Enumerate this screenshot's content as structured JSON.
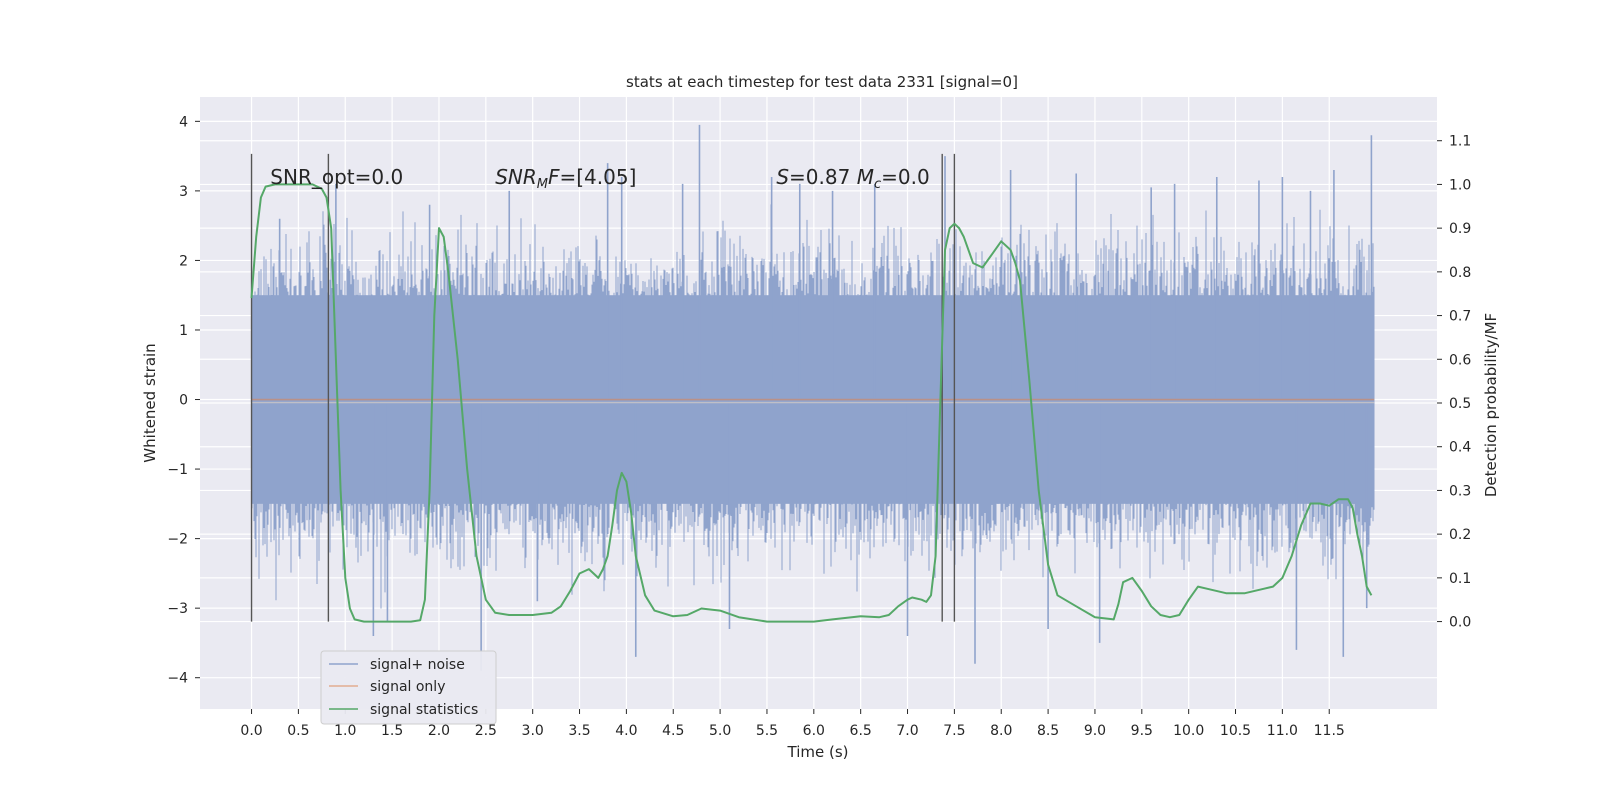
{
  "chart_data": {
    "type": "line",
    "title": "stats at each timestep for test data 2331 [signal=0]",
    "xlabel": "Time (s)",
    "ylabel_left": "Whitened strain",
    "ylabel_right": "Detection probability/MF",
    "xlim": [
      -0.55,
      12.65
    ],
    "ylim_left": [
      -4.45,
      4.35
    ],
    "ylim_right": [
      -0.2,
      1.2
    ],
    "x_ticks": [
      "0.0",
      "0.5",
      "1.0",
      "1.5",
      "2.0",
      "2.5",
      "3.0",
      "3.5",
      "4.0",
      "4.5",
      "5.0",
      "5.5",
      "6.0",
      "6.5",
      "7.0",
      "7.5",
      "8.0",
      "8.5",
      "9.0",
      "9.5",
      "10.0",
      "10.5",
      "11.0",
      "11.5"
    ],
    "y_ticks_left": [
      "4",
      "3",
      "2",
      "1",
      "0",
      "−1",
      "−2",
      "−3",
      "−4"
    ],
    "y_ticks_right": [
      "1.1",
      "1.0",
      "0.9",
      "0.8",
      "0.7",
      "0.6",
      "0.5",
      "0.4",
      "0.3",
      "0.2",
      "0.1",
      "0.0"
    ],
    "grid": true,
    "legend_position": "lower-left",
    "legend": [
      "signal+ noise",
      "signal only",
      "signal statistics"
    ],
    "colors": {
      "noise": "#8fa3cc",
      "signal_only": "#dd8452",
      "statistics": "#55a868",
      "markers": "#555555",
      "background": "#eaeaf2"
    },
    "annotations": [
      {
        "id": "snr-opt",
        "x": 0.2,
        "y": 3.1,
        "parts": [
          {
            "t": "SNR_opt=0.0"
          }
        ]
      },
      {
        "id": "snr-mf",
        "x": 2.6,
        "y": 3.1,
        "parts": [
          {
            "t": "SNR",
            "i": true
          },
          {
            "t": "M",
            "i": true,
            "sub": true
          },
          {
            "t": "F",
            "i": true
          },
          {
            "t": "=[4.05]"
          }
        ]
      },
      {
        "id": "s-mc",
        "x": 5.6,
        "y": 3.1,
        "parts": [
          {
            "t": "S",
            "i": true
          },
          {
            "t": "=0.87   "
          },
          {
            "t": "M",
            "i": true
          },
          {
            "t": "c",
            "i": true,
            "sub": true
          },
          {
            "t": "=0.0"
          }
        ]
      }
    ],
    "marker_lines_x": [
      0.0,
      0.82,
      7.37,
      7.5
    ],
    "series": [
      {
        "name": "signal+ noise",
        "kind": "noise",
        "x_range": [
          0.0,
          11.98
        ],
        "core_range": [
          -1.5,
          1.5
        ],
        "spikes": [
          [
            0.3,
            2.6
          ],
          [
            0.9,
            3.1
          ],
          [
            1.3,
            -3.4
          ],
          [
            1.45,
            -3.2
          ],
          [
            1.9,
            2.8
          ],
          [
            2.45,
            -3.9
          ],
          [
            2.75,
            3.0
          ],
          [
            3.05,
            -2.9
          ],
          [
            3.8,
            3.4
          ],
          [
            3.95,
            3.2
          ],
          [
            4.1,
            -3.7
          ],
          [
            4.6,
            3.1
          ],
          [
            4.78,
            3.95
          ],
          [
            5.1,
            -3.3
          ],
          [
            5.55,
            3.2
          ],
          [
            5.85,
            3.1
          ],
          [
            6.2,
            3.0
          ],
          [
            6.65,
            3.1
          ],
          [
            7.0,
            -3.4
          ],
          [
            7.4,
            3.5
          ],
          [
            7.72,
            -3.8
          ],
          [
            8.1,
            3.3
          ],
          [
            8.5,
            -3.3
          ],
          [
            8.8,
            3.25
          ],
          [
            9.05,
            -3.5
          ],
          [
            9.6,
            3.05
          ],
          [
            9.85,
            3.1
          ],
          [
            10.3,
            3.2
          ],
          [
            10.75,
            3.15
          ],
          [
            11.0,
            3.2
          ],
          [
            11.15,
            -3.6
          ],
          [
            11.3,
            3.0
          ],
          [
            11.55,
            3.3
          ],
          [
            11.65,
            -3.7
          ],
          [
            11.95,
            3.8
          ],
          [
            11.9,
            -3.0
          ]
        ]
      },
      {
        "name": "signal only",
        "kind": "flat",
        "x": [
          0.0,
          11.98
        ],
        "y": [
          0.0,
          0.0
        ]
      },
      {
        "name": "signal statistics",
        "kind": "stat",
        "x": [
          0.0,
          0.05,
          0.1,
          0.15,
          0.25,
          0.4,
          0.55,
          0.65,
          0.75,
          0.8,
          0.85,
          0.9,
          0.95,
          1.0,
          1.05,
          1.1,
          1.2,
          1.3,
          1.5,
          1.7,
          1.8,
          1.85,
          1.9,
          1.95,
          2.0,
          2.05,
          2.1,
          2.2,
          2.3,
          2.4,
          2.5,
          2.6,
          2.75,
          3.0,
          3.2,
          3.3,
          3.4,
          3.5,
          3.6,
          3.7,
          3.75,
          3.8,
          3.85,
          3.9,
          3.95,
          4.0,
          4.05,
          4.1,
          4.2,
          4.3,
          4.5,
          4.65,
          4.8,
          5.0,
          5.2,
          5.5,
          5.8,
          6.0,
          6.2,
          6.5,
          6.7,
          6.8,
          6.9,
          7.0,
          7.05,
          7.15,
          7.2,
          7.25,
          7.3,
          7.35,
          7.4,
          7.45,
          7.5,
          7.55,
          7.6,
          7.7,
          7.8,
          7.9,
          8.0,
          8.1,
          8.15,
          8.2,
          8.3,
          8.4,
          8.5,
          8.6,
          8.8,
          9.0,
          9.2,
          9.25,
          9.3,
          9.4,
          9.5,
          9.6,
          9.7,
          9.8,
          9.9,
          10.0,
          10.1,
          10.2,
          10.4,
          10.6,
          10.8,
          10.9,
          11.0,
          11.1,
          11.2,
          11.3,
          11.4,
          11.5,
          11.6,
          11.7,
          11.75,
          11.8,
          11.85,
          11.9,
          11.95
        ],
        "y": [
          0.74,
          0.88,
          0.97,
          0.995,
          1.0,
          1.0,
          1.0,
          1.0,
          0.99,
          0.97,
          0.9,
          0.6,
          0.3,
          0.1,
          0.03,
          0.005,
          0.0,
          0.0,
          0.0,
          0.0,
          0.003,
          0.05,
          0.3,
          0.7,
          0.9,
          0.88,
          0.8,
          0.6,
          0.35,
          0.15,
          0.05,
          0.02,
          0.015,
          0.015,
          0.02,
          0.035,
          0.07,
          0.11,
          0.12,
          0.1,
          0.12,
          0.15,
          0.22,
          0.3,
          0.34,
          0.32,
          0.25,
          0.15,
          0.06,
          0.025,
          0.012,
          0.015,
          0.03,
          0.025,
          0.01,
          0.0,
          0.0,
          0.0,
          0.005,
          0.012,
          0.01,
          0.015,
          0.035,
          0.05,
          0.055,
          0.05,
          0.045,
          0.06,
          0.15,
          0.5,
          0.85,
          0.9,
          0.91,
          0.9,
          0.88,
          0.82,
          0.81,
          0.84,
          0.87,
          0.85,
          0.82,
          0.78,
          0.55,
          0.3,
          0.13,
          0.06,
          0.035,
          0.01,
          0.005,
          0.04,
          0.09,
          0.1,
          0.07,
          0.035,
          0.015,
          0.01,
          0.015,
          0.05,
          0.08,
          0.075,
          0.065,
          0.065,
          0.075,
          0.08,
          0.1,
          0.15,
          0.22,
          0.27,
          0.27,
          0.265,
          0.28,
          0.28,
          0.26,
          0.2,
          0.15,
          0.08,
          0.06
        ]
      }
    ]
  }
}
